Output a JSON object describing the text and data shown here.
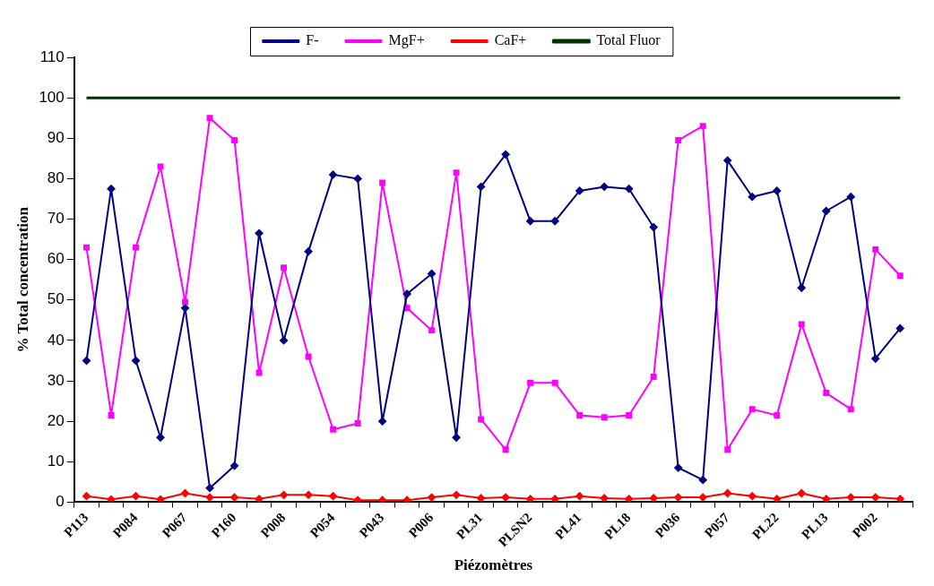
{
  "chart_data": {
    "type": "line",
    "xlabel": "Piézomètres",
    "ylabel": "% Total concentration",
    "categories": [
      "P113",
      null,
      "P084",
      null,
      "P067",
      null,
      "P160",
      null,
      "P008",
      null,
      "P054",
      null,
      "P043",
      null,
      "P006",
      null,
      "PL31",
      null,
      "PLSN2",
      null,
      "PL41",
      null,
      "PL18",
      null,
      "P036",
      null,
      "P057",
      null,
      "PL22",
      null,
      "PL13",
      null,
      "P002",
      null
    ],
    "ylim": [
      0,
      110
    ],
    "yticks": [
      0,
      10,
      20,
      30,
      40,
      50,
      60,
      70,
      80,
      90,
      100,
      110
    ],
    "grid": false,
    "legend": "top",
    "line_style": "solid",
    "series": [
      {
        "name": "F-",
        "color": "#000080",
        "marker": "diamond",
        "values": [
          35,
          77.5,
          35,
          16,
          48,
          3.5,
          9,
          66.5,
          40,
          62,
          81,
          80,
          20,
          51.5,
          56.5,
          16,
          78,
          86,
          69.5,
          69.5,
          77,
          78,
          77.5,
          68,
          8.5,
          5.5,
          84.5,
          75.5,
          77,
          53,
          72,
          75.5,
          35.5,
          43
        ]
      },
      {
        "name": "MgF+",
        "color": "#ff00ff",
        "marker": "square",
        "values": [
          63,
          21.5,
          63,
          83,
          49.5,
          95,
          89.5,
          32,
          58,
          36,
          18,
          19.5,
          79,
          48,
          42.5,
          81.5,
          20.5,
          13,
          29.5,
          29.5,
          21.5,
          21,
          21.5,
          31,
          89.5,
          93,
          13,
          23,
          21.5,
          44,
          27,
          23,
          62.5,
          56
        ]
      },
      {
        "name": "CaF+",
        "color": "#ff0000",
        "marker": "diamond",
        "values": [
          1.5,
          0.7,
          1.5,
          0.7,
          2.2,
          1.2,
          1.2,
          0.8,
          1.8,
          1.8,
          1.5,
          0.5,
          0.5,
          0.5,
          1.2,
          1.8,
          1,
          1.2,
          0.8,
          0.8,
          1.5,
          1,
          0.8,
          1,
          1.2,
          1.2,
          2.2,
          1.5,
          0.8,
          2.2,
          0.8,
          1.2,
          1.2,
          0.8
        ]
      },
      {
        "name": "Total Fluor",
        "color": "#003300",
        "marker": "none",
        "values": [
          100,
          100,
          100,
          100,
          100,
          100,
          100,
          100,
          100,
          100,
          100,
          100,
          100,
          100,
          100,
          100,
          100,
          100,
          100,
          100,
          100,
          100,
          100,
          100,
          100,
          100,
          100,
          100,
          100,
          100,
          100,
          100,
          100,
          100
        ]
      }
    ]
  }
}
